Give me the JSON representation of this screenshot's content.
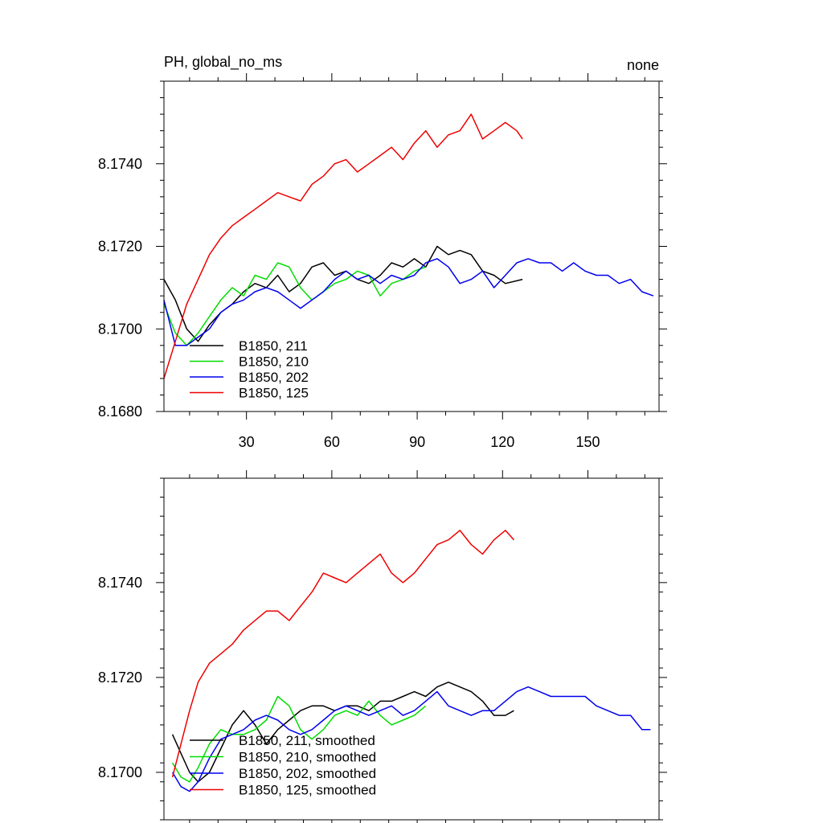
{
  "chart_data": [
    {
      "type": "line",
      "title_left": "PH, global_no_ms",
      "title_right": "none",
      "xlabel": "",
      "ylabel": "",
      "xlim": [
        1,
        175
      ],
      "ylim": [
        8.168,
        8.176
      ],
      "xticks": [
        30,
        60,
        90,
        120,
        150
      ],
      "xtick_labels": [
        "30",
        "60",
        "90",
        "120",
        "150"
      ],
      "yticks": [
        8.168,
        8.17,
        8.172,
        8.174
      ],
      "ytick_labels": [
        "8.1680",
        "8.1700",
        "8.1720",
        "8.1740"
      ],
      "legend_position": "bottom-left",
      "series": [
        {
          "name": "B1850, 211",
          "color": "#000000",
          "x": [
            1,
            5,
            9,
            13,
            17,
            21,
            25,
            29,
            33,
            37,
            41,
            45,
            49,
            53,
            57,
            61,
            65,
            69,
            73,
            77,
            81,
            85,
            89,
            93,
            97,
            101,
            105,
            109,
            113,
            117,
            121,
            127
          ],
          "y": [
            8.1712,
            8.1707,
            8.17,
            8.1697,
            8.1701,
            8.1704,
            8.1706,
            8.1709,
            8.1711,
            8.171,
            8.1713,
            8.1709,
            8.1711,
            8.1715,
            8.1716,
            8.1713,
            8.1714,
            8.1712,
            8.1711,
            8.1713,
            8.1716,
            8.1715,
            8.1717,
            8.1715,
            8.172,
            8.1718,
            8.1719,
            8.1718,
            8.1714,
            8.1713,
            8.1711,
            8.1712
          ]
        },
        {
          "name": "B1850, 210",
          "color": "#00dd00",
          "x": [
            1,
            5,
            9,
            13,
            17,
            21,
            25,
            29,
            33,
            37,
            41,
            45,
            49,
            53,
            57,
            61,
            65,
            69,
            73,
            77,
            81,
            85,
            89,
            93
          ],
          "y": [
            8.1706,
            8.1699,
            8.1696,
            8.1699,
            8.1703,
            8.1707,
            8.171,
            8.1708,
            8.1713,
            8.1712,
            8.1716,
            8.1715,
            8.171,
            8.1707,
            8.1709,
            8.1711,
            8.1712,
            8.1714,
            8.1713,
            8.1708,
            8.1711,
            8.1712,
            8.1714,
            8.1715
          ]
        },
        {
          "name": "B1850, 202",
          "color": "#0000ee",
          "x": [
            1,
            5,
            9,
            13,
            17,
            21,
            25,
            29,
            33,
            37,
            41,
            45,
            49,
            53,
            57,
            61,
            65,
            69,
            73,
            77,
            81,
            85,
            89,
            93,
            97,
            101,
            105,
            109,
            113,
            117,
            121,
            125,
            129,
            133,
            137,
            141,
            145,
            149,
            153,
            157,
            161,
            165,
            169,
            173
          ],
          "y": [
            8.1707,
            8.1696,
            8.1696,
            8.1698,
            8.17,
            8.1704,
            8.1706,
            8.1707,
            8.1709,
            8.171,
            8.1709,
            8.1707,
            8.1705,
            8.1707,
            8.1709,
            8.1712,
            8.1714,
            8.1712,
            8.1713,
            8.1711,
            8.1713,
            8.1712,
            8.1713,
            8.1716,
            8.1717,
            8.1715,
            8.1711,
            8.1712,
            8.1714,
            8.171,
            8.1713,
            8.1716,
            8.1717,
            8.1716,
            8.1716,
            8.1714,
            8.1716,
            8.1714,
            8.1713,
            8.1713,
            8.1711,
            8.1712,
            8.1709,
            8.1708
          ]
        },
        {
          "name": "B1850, 125",
          "color": "#ee0000",
          "x": [
            1,
            5,
            9,
            13,
            17,
            21,
            25,
            29,
            33,
            37,
            41,
            45,
            49,
            53,
            57,
            61,
            65,
            69,
            73,
            77,
            81,
            85,
            89,
            93,
            97,
            101,
            105,
            109,
            113,
            117,
            121,
            125,
            127
          ],
          "y": [
            8.1688,
            8.1697,
            8.1706,
            8.1712,
            8.1718,
            8.1722,
            8.1725,
            8.1727,
            8.1729,
            8.1731,
            8.1733,
            8.1732,
            8.1731,
            8.1735,
            8.1737,
            8.174,
            8.1741,
            8.1738,
            8.174,
            8.1742,
            8.1744,
            8.1741,
            8.1745,
            8.1748,
            8.1744,
            8.1747,
            8.1748,
            8.1752,
            8.1746,
            8.1748,
            8.175,
            8.1748,
            8.1746
          ]
        }
      ]
    },
    {
      "type": "line",
      "xlabel": "",
      "ylabel": "",
      "xlim": [
        1,
        175
      ],
      "ylim": [
        8.169,
        8.1762
      ],
      "xticks": [
        30,
        60,
        90,
        120,
        150
      ],
      "yticks": [
        8.17,
        8.172,
        8.174
      ],
      "ytick_labels": [
        "8.1700",
        "8.1720",
        "8.1740"
      ],
      "legend_position": "bottom-left",
      "series": [
        {
          "name": "B1850, 211, smoothed",
          "color": "#000000",
          "x": [
            4,
            7,
            10,
            13,
            17,
            21,
            25,
            29,
            33,
            37,
            41,
            45,
            49,
            53,
            57,
            61,
            65,
            69,
            73,
            77,
            81,
            85,
            89,
            93,
            97,
            101,
            105,
            109,
            113,
            117,
            121,
            124
          ],
          "y": [
            8.1708,
            8.1704,
            8.17,
            8.1698,
            8.17,
            8.1705,
            8.171,
            8.1713,
            8.171,
            8.1706,
            8.1709,
            8.1711,
            8.1713,
            8.1714,
            8.1714,
            8.1713,
            8.1714,
            8.1714,
            8.1713,
            8.1715,
            8.1715,
            8.1716,
            8.1717,
            8.1716,
            8.1718,
            8.1719,
            8.1718,
            8.1717,
            8.1715,
            8.1712,
            8.1712,
            8.1713
          ]
        },
        {
          "name": "B1850, 210, smoothed",
          "color": "#00dd00",
          "x": [
            4,
            7,
            10,
            13,
            17,
            21,
            25,
            29,
            33,
            37,
            41,
            45,
            49,
            53,
            57,
            61,
            65,
            69,
            73,
            77,
            81,
            85,
            89,
            93
          ],
          "y": [
            8.1702,
            8.1699,
            8.1698,
            8.1701,
            8.1706,
            8.1709,
            8.1708,
            8.1708,
            8.1709,
            8.1711,
            8.1716,
            8.1714,
            8.1709,
            8.1707,
            8.1709,
            8.1712,
            8.1713,
            8.1712,
            8.1715,
            8.1712,
            8.171,
            8.1711,
            8.1712,
            8.1714
          ]
        },
        {
          "name": "B1850, 202, smoothed",
          "color": "#0000ee",
          "x": [
            4,
            7,
            10,
            13,
            17,
            21,
            25,
            29,
            33,
            37,
            41,
            45,
            49,
            53,
            57,
            61,
            65,
            69,
            73,
            77,
            81,
            85,
            89,
            93,
            97,
            101,
            105,
            109,
            113,
            117,
            121,
            125,
            129,
            133,
            137,
            141,
            145,
            149,
            153,
            157,
            161,
            165,
            169,
            172
          ],
          "y": [
            8.17,
            8.1697,
            8.1696,
            8.1698,
            8.1703,
            8.1707,
            8.1708,
            8.1709,
            8.1711,
            8.1712,
            8.1711,
            8.1709,
            8.1708,
            8.1709,
            8.1711,
            8.1713,
            8.1714,
            8.1713,
            8.1712,
            8.1713,
            8.1714,
            8.1712,
            8.1713,
            8.1715,
            8.1717,
            8.1714,
            8.1713,
            8.1712,
            8.1713,
            8.1713,
            8.1715,
            8.1717,
            8.1718,
            8.1717,
            8.1716,
            8.1716,
            8.1716,
            8.1716,
            8.1714,
            8.1713,
            8.1712,
            8.1712,
            8.1709,
            8.1709
          ]
        },
        {
          "name": "B1850, 125, smoothed",
          "color": "#ee0000",
          "x": [
            4,
            7,
            10,
            13,
            17,
            21,
            25,
            29,
            33,
            37,
            41,
            45,
            49,
            53,
            57,
            61,
            65,
            69,
            73,
            77,
            81,
            85,
            89,
            93,
            97,
            101,
            105,
            109,
            113,
            117,
            121,
            124
          ],
          "y": [
            8.1699,
            8.1706,
            8.1713,
            8.1719,
            8.1723,
            8.1725,
            8.1727,
            8.173,
            8.1732,
            8.1734,
            8.1734,
            8.1732,
            8.1735,
            8.1738,
            8.1742,
            8.1741,
            8.174,
            8.1742,
            8.1744,
            8.1746,
            8.1742,
            8.174,
            8.1742,
            8.1745,
            8.1748,
            8.1749,
            8.1751,
            8.1748,
            8.1746,
            8.1749,
            8.1751,
            8.1749
          ]
        }
      ]
    }
  ]
}
